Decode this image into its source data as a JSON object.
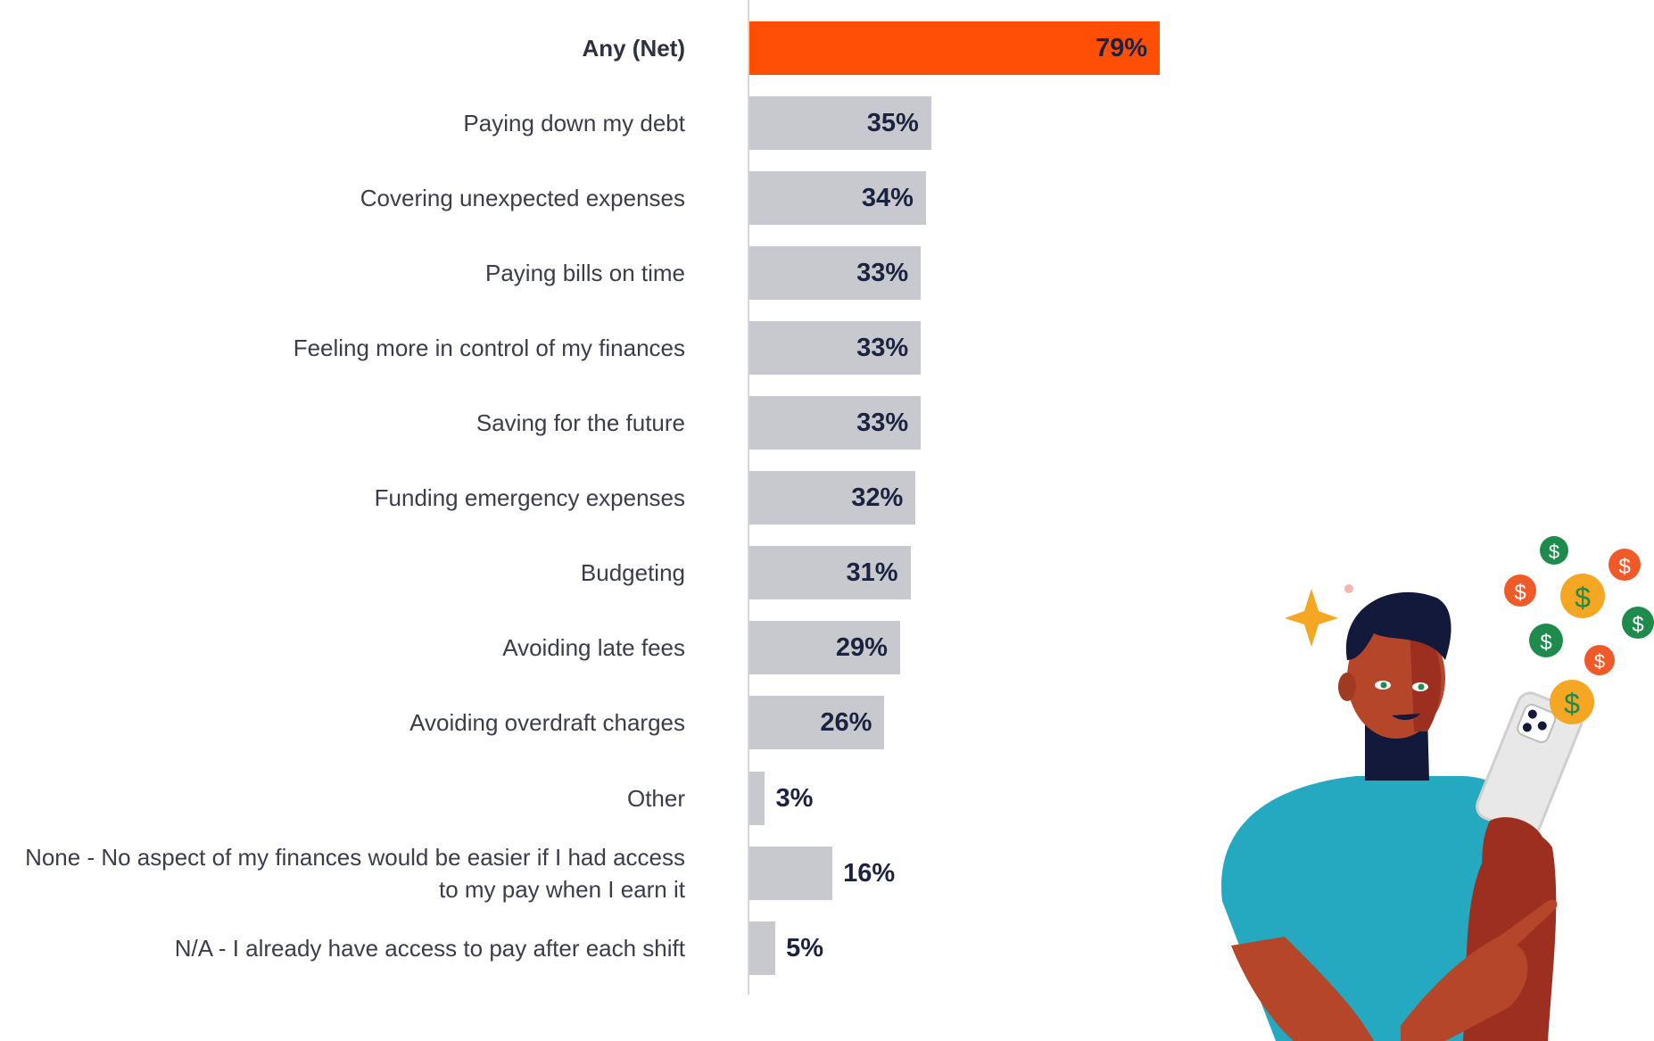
{
  "chart_data": {
    "type": "bar",
    "orientation": "horizontal",
    "categories": [
      "Any (Net)",
      "Paying down my debt",
      "Covering unexpected expenses",
      "Paying bills on time",
      "Feeling more in control of my finances",
      "Saving for the future",
      "Funding emergency expenses",
      "Budgeting",
      "Avoiding late fees",
      "Avoiding overdraft charges",
      "Other",
      "None - No aspect of my finances would be easier if I had access to my pay when I earn it",
      "N/A - I already have access to pay after each shift"
    ],
    "values": [
      79,
      35,
      34,
      33,
      33,
      33,
      32,
      31,
      29,
      26,
      3,
      16,
      5
    ],
    "value_labels": [
      "79%",
      "35%",
      "34%",
      "33%",
      "33%",
      "33%",
      "32%",
      "31%",
      "29%",
      "26%",
      "3%",
      "16%",
      "5%"
    ],
    "highlight_index": 0,
    "xlim": [
      0,
      100
    ],
    "grid": false,
    "legend": "none"
  },
  "colors": {
    "highlight": "#ff4f06",
    "bar": "#c8c9ce",
    "label_text": "#3b3d4a",
    "value_text": "#1c2340",
    "shirt": "#25a9c1",
    "skin": "#b5462a",
    "hair": "#12193a",
    "coin_orange": "#f05a28",
    "coin_green": "#1e8a4c",
    "coin_yellow": "#f5a623",
    "sparkle": "#f5a623"
  },
  "illustration": {
    "subject": "person-with-phone-and-coins",
    "icons": [
      "dollar-coin-icon",
      "sparkle-icon",
      "smartphone-icon"
    ]
  }
}
